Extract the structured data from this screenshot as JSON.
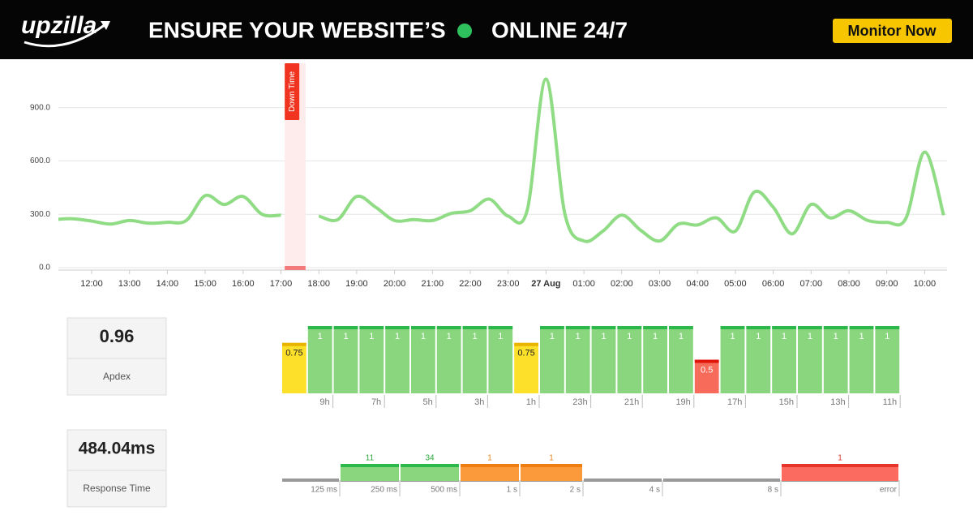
{
  "header": {
    "logo": "upzilla",
    "headline": "ENSURE YOUR WEBSITE’S",
    "headline_end": "ONLINE 24/7",
    "button": "Monitor Now"
  },
  "stats": [
    {
      "value": "0.96",
      "label": "Apdex"
    },
    {
      "value": "484.04ms",
      "label": "Response Time"
    }
  ],
  "chart_data": [
    {
      "type": "line",
      "annotation": "Down Time",
      "categories": [
        null,
        null,
        "12:00",
        null,
        "13:00",
        null,
        "14:00",
        null,
        "15:00",
        null,
        "16:00",
        null,
        "17:00",
        null,
        "18:00",
        null,
        "19:00",
        null,
        "20:00",
        null,
        "21:00",
        null,
        "22:00",
        null,
        "23:00",
        null,
        "27 Aug",
        null,
        "01:00",
        null,
        "02:00",
        null,
        "03:00",
        null,
        "04:00",
        null,
        "05:00",
        null,
        "06:00",
        null,
        "07:00",
        null,
        "08:00",
        null,
        "09:00",
        null,
        "10:00",
        null
      ],
      "series": [
        {
          "color": "#8fdc85",
          "values": [
            270,
            275,
            262,
            245,
            265,
            250,
            255,
            265,
            405,
            355,
            400,
            300,
            295,
            null,
            290,
            270,
            400,
            340,
            265,
            270,
            265,
            305,
            320,
            385,
            290,
            320,
            1060,
            300,
            150,
            205,
            295,
            210,
            150,
            245,
            240,
            280,
            205,
            425,
            340,
            190,
            355,
            280,
            320,
            265,
            255,
            275,
            650,
            295
          ]
        }
      ],
      "ylim": [
        0,
        1140
      ],
      "yticks": [
        {
          "value": 0,
          "label": "0.0"
        },
        {
          "value": 300,
          "label": "300.0"
        },
        {
          "value": 600,
          "label": "600.0"
        },
        {
          "value": 900,
          "label": "900.0"
        }
      ],
      "grid": true
    },
    {
      "type": "bar",
      "categories": [
        null,
        "9h",
        null,
        "7h",
        null,
        "5h",
        null,
        "3h",
        null,
        "1h",
        null,
        "23h",
        null,
        "21h",
        null,
        "19h",
        null,
        "17h",
        null,
        "15h",
        null,
        "13h",
        null,
        "11h"
      ],
      "values": [
        0.75,
        1,
        1,
        1,
        1,
        1,
        1,
        1,
        1,
        0.75,
        1,
        1,
        1,
        1,
        1,
        1,
        0.5,
        1,
        1,
        1,
        1,
        1,
        1,
        1
      ],
      "colors": [
        "#fde02a",
        "#8ad67f",
        "#8ad67f",
        "#8ad67f",
        "#8ad67f",
        "#8ad67f",
        "#8ad67f",
        "#8ad67f",
        "#8ad67f",
        "#fde02a",
        "#8ad67f",
        "#8ad67f",
        "#8ad67f",
        "#8ad67f",
        "#8ad67f",
        "#8ad67f",
        "#f76b5b",
        "#8ad67f",
        "#8ad67f",
        "#8ad67f",
        "#8ad67f",
        "#8ad67f",
        "#8ad67f",
        "#8ad67f"
      ],
      "ylim": [
        0,
        1
      ]
    },
    {
      "type": "bar",
      "categories": [
        "125 ms",
        "250 ms",
        "500 ms",
        "1 s",
        "2 s",
        "4 s",
        "8 s",
        "error"
      ],
      "values": [
        null,
        11,
        34,
        1,
        1,
        null,
        null,
        1
      ],
      "colors": [
        "#999999",
        "#8ad67f",
        "#8ad67f",
        "#fb9a3a",
        "#fb9a3a",
        "#999999",
        "#999999",
        "#fb6b5f"
      ]
    }
  ]
}
